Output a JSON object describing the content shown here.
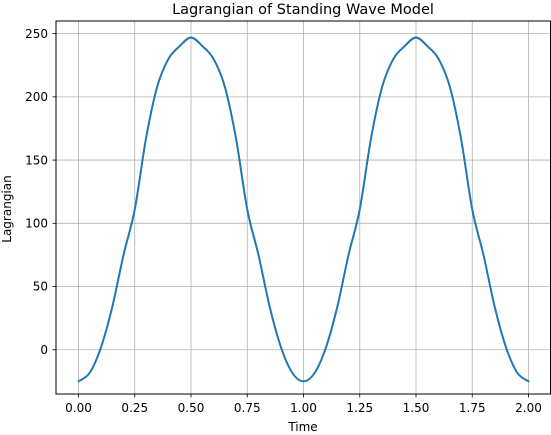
{
  "chart_data": {
    "type": "line",
    "title": "Lagrangian of Standing Wave Model",
    "xlabel": "Time",
    "ylabel": "Lagrangian",
    "xlim": [
      -0.1,
      2.1
    ],
    "ylim": [
      -35,
      260
    ],
    "grid": true,
    "xticks": [
      0.0,
      0.25,
      0.5,
      0.75,
      1.0,
      1.25,
      1.5,
      1.75,
      2.0
    ],
    "xtick_labels": [
      "0.00",
      "0.25",
      "0.50",
      "0.75",
      "1.00",
      "1.25",
      "1.50",
      "1.75",
      "2.00"
    ],
    "yticks": [
      0,
      50,
      100,
      150,
      200,
      250
    ],
    "ytick_labels": [
      "0",
      "50",
      "100",
      "150",
      "200",
      "250"
    ],
    "series": [
      {
        "color": "#1f77b4",
        "x": [
          0.0,
          0.05,
          0.1,
          0.15,
          0.2,
          0.25,
          0.3,
          0.35,
          0.4,
          0.45,
          0.5,
          0.55,
          0.6,
          0.65,
          0.7,
          0.75,
          0.8,
          0.85,
          0.9,
          0.95,
          1.0,
          1.05,
          1.1,
          1.15,
          1.2,
          1.25,
          1.3,
          1.35,
          1.4,
          1.45,
          1.5,
          1.55,
          1.6,
          1.65,
          1.7,
          1.75,
          1.8,
          1.85,
          1.9,
          1.95,
          2.0
        ],
        "y": [
          -25.0,
          -18.2,
          1.9,
          33.8,
          74.9,
          111.0,
          167.1,
          208.2,
          230.1,
          240.2,
          247.0,
          240.2,
          230.1,
          208.2,
          167.1,
          111.0,
          74.9,
          33.8,
          1.9,
          -18.2,
          -25.0,
          -18.2,
          1.9,
          33.8,
          74.9,
          111.0,
          167.1,
          208.2,
          230.1,
          240.2,
          247.0,
          240.2,
          230.1,
          208.2,
          167.1,
          111.0,
          74.9,
          33.8,
          1.9,
          -18.2,
          -25.0
        ]
      }
    ]
  }
}
